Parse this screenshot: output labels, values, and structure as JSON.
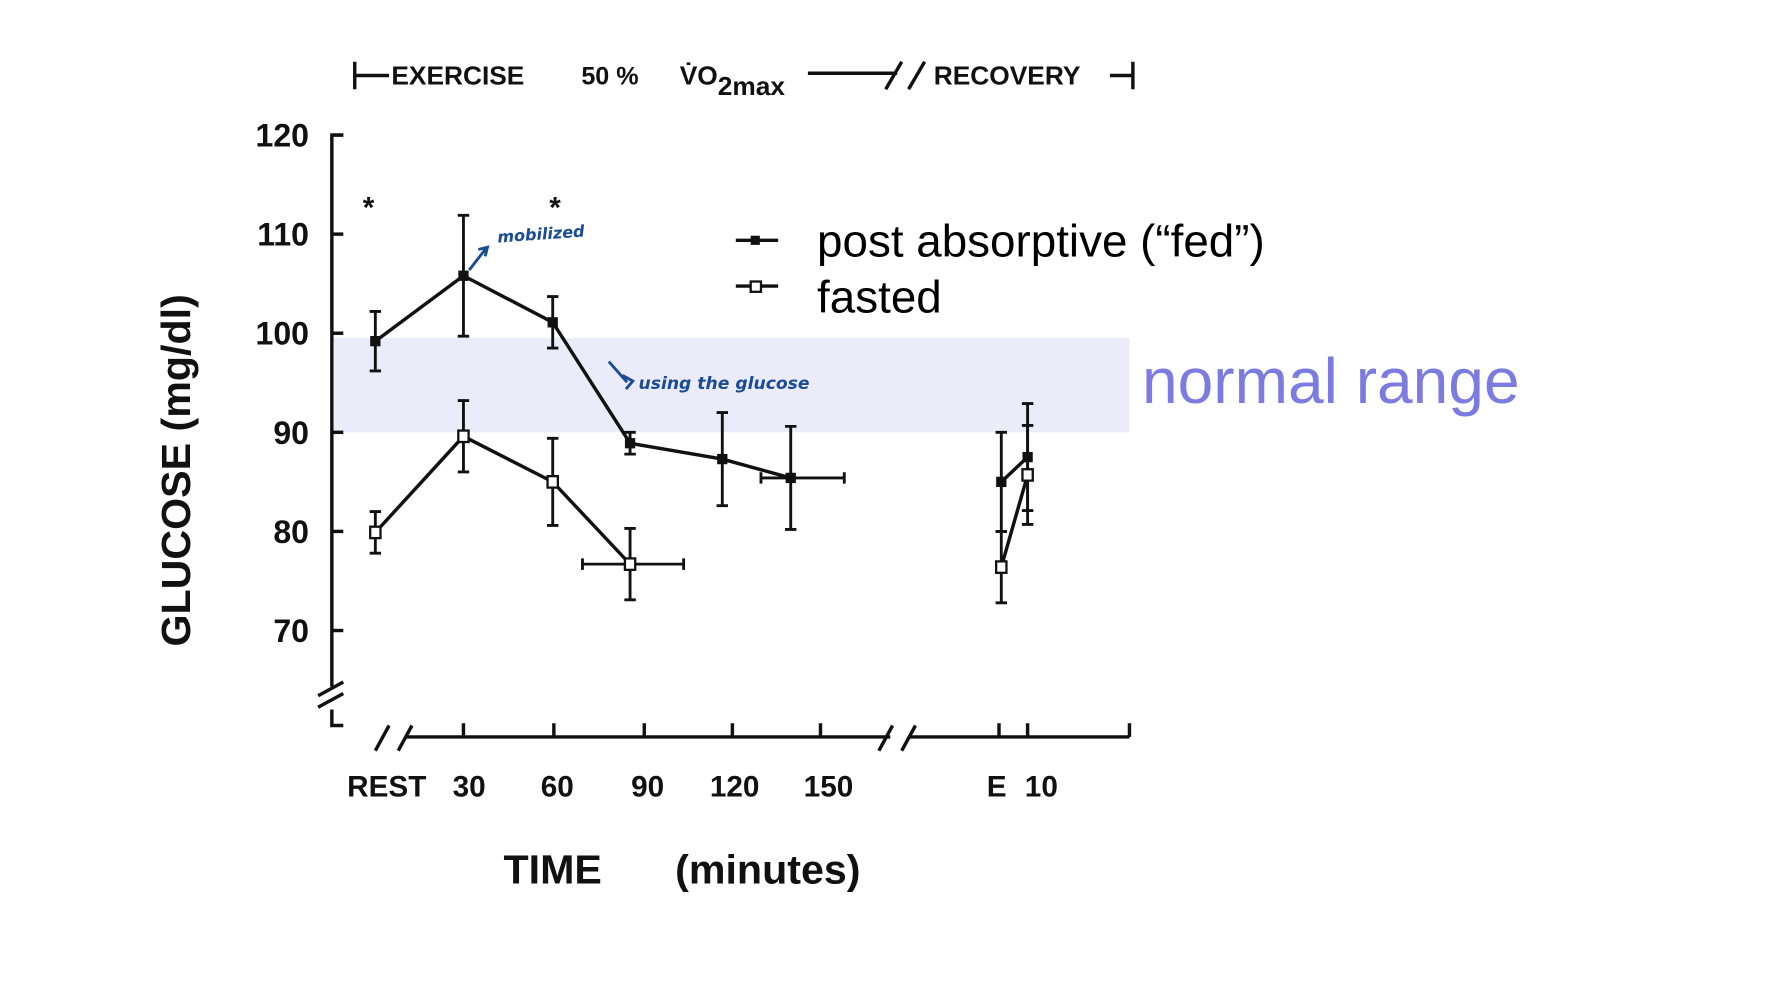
{
  "chart_data": {
    "type": "line",
    "header": {
      "exercise": "EXERCISE",
      "intensity": "50 %",
      "vo2": "V̇O",
      "vo2_sub": "2max",
      "recovery": "RECOVERY"
    },
    "ylabel": "GLUCOSE   (mg/dl)",
    "xlabel": "TIME",
    "xlabel_unit": "(minutes)",
    "ylim": [
      70,
      120
    ],
    "yticks": [
      "120",
      "110",
      "100",
      "90",
      "80",
      "70"
    ],
    "xticks": [
      "REST",
      "30",
      "60",
      "90",
      "120",
      "150",
      "E",
      "10"
    ],
    "grid": false,
    "legend_position": "top-right",
    "series": [
      {
        "name": "post absorptive (“fed”)",
        "marker": "filled-square",
        "points": [
          {
            "x": "REST",
            "y": 99.2,
            "err": 3.0
          },
          {
            "x": 30,
            "y": 105.8,
            "err": 6.1
          },
          {
            "x": 60,
            "y": 101.1,
            "err": 2.6
          },
          {
            "x": 86,
            "y": 88.9,
            "err": 1.1
          },
          {
            "x": 117,
            "y": 87.3,
            "err": 4.7
          },
          {
            "x": 140,
            "y": 85.4,
            "err": 5.2,
            "xerr": [
              130,
              158
            ]
          },
          {
            "x": "E",
            "y": 85.0,
            "err": 5.0
          },
          {
            "x": "10",
            "y": 87.5,
            "err": 5.4
          }
        ]
      },
      {
        "name": "fasted",
        "marker": "open-square",
        "points": [
          {
            "x": "REST",
            "y": 79.9,
            "err": 2.1
          },
          {
            "x": 30,
            "y": 89.6,
            "err": 3.6
          },
          {
            "x": 60,
            "y": 85.0,
            "err": 4.4
          },
          {
            "x": 86,
            "y": 76.7,
            "err": 3.6,
            "xerr": [
              70,
              104
            ]
          },
          {
            "x": "E",
            "y": 76.4,
            "err": 3.6
          },
          {
            "x": "10",
            "y": 85.7,
            "err": 5.0
          }
        ]
      }
    ],
    "band": {
      "from": 90,
      "to": 100,
      "label": "normal range",
      "color": "#ebebf9",
      "label_color": "#7b7be0"
    },
    "significance_marks": [
      "*",
      "*"
    ],
    "annotations": [
      {
        "text": "mobilized",
        "color": "#1a4b96"
      },
      {
        "text": "using the glucose",
        "color": "#1a4b96"
      }
    ]
  }
}
